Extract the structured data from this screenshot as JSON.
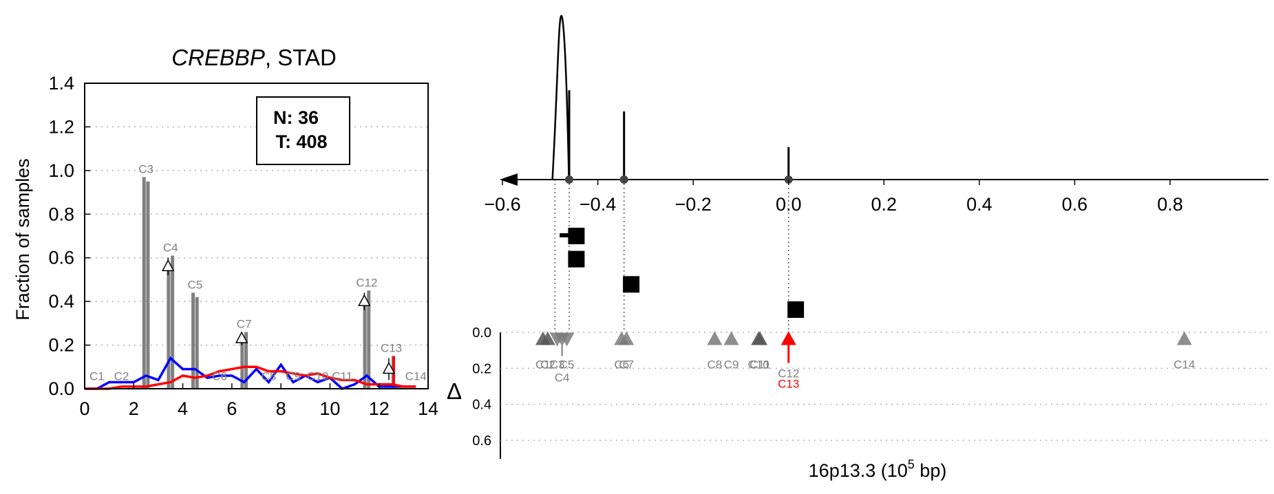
{
  "chart_data": [
    {
      "type": "bar",
      "title_gene": "CREBBP",
      "title_rest": ", STAD",
      "ylabel": "Fraction of samples",
      "xlim": [
        0,
        14
      ],
      "ylim": [
        0,
        1.4
      ],
      "xticks": [
        "0",
        "2",
        "4",
        "6",
        "8",
        "10",
        "12",
        "14"
      ],
      "yticks": [
        "0.0",
        "0.2",
        "0.4",
        "0.6",
        "0.8",
        "1.0",
        "1.2",
        "1.4"
      ],
      "legend_box": {
        "line1": "N: 36",
        "line2": "T: 408"
      },
      "grid": "horizontal dotted",
      "colors": {
        "bars": "#808080",
        "normal_line": "#0000ff",
        "tumor_line": "#ff0000",
        "highlight": "#ff0000"
      },
      "components": [
        {
          "label": "C1",
          "x": 0.5,
          "normal": 0.0,
          "tumor": 0.0
        },
        {
          "label": "C2",
          "x": 1.5,
          "normal": 0.0,
          "tumor": 0.0
        },
        {
          "label": "C3",
          "x": 2.5,
          "normal": 0.97,
          "tumor": 0.95
        },
        {
          "label": "C4",
          "x": 3.5,
          "normal": 0.56,
          "tumor": 0.61
        },
        {
          "label": "C5",
          "x": 4.5,
          "normal": 0.44,
          "tumor": 0.42
        },
        {
          "label": "C6",
          "x": 5.5,
          "normal": 0.0,
          "tumor": 0.0
        },
        {
          "label": "C7",
          "x": 6.5,
          "normal": 0.22,
          "tumor": 0.26
        },
        {
          "label": "C8",
          "x": 7.5,
          "normal": 0.0,
          "tumor": 0.0
        },
        {
          "label": "C9",
          "x": 8.5,
          "normal": 0.0,
          "tumor": 0.0
        },
        {
          "label": "C10",
          "x": 9.5,
          "normal": 0.0,
          "tumor": 0.0
        },
        {
          "label": "C11",
          "x": 10.5,
          "normal": 0.0,
          "tumor": 0.0
        },
        {
          "label": "C12",
          "x": 11.5,
          "normal": 0.38,
          "tumor": 0.45
        },
        {
          "label": "C13",
          "x": 12.5,
          "normal": 0.0,
          "tumor": 0.15
        },
        {
          "label": "C14",
          "x": 13.5,
          "normal": 0.0,
          "tumor": 0.0
        }
      ],
      "delta_markers": [
        {
          "x": 3.4,
          "y": 0.56,
          "err": 0.04
        },
        {
          "x": 6.4,
          "y": 0.23,
          "err": 0.03
        },
        {
          "x": 11.4,
          "y": 0.4,
          "err": 0.04
        },
        {
          "x": 12.4,
          "y": 0.09,
          "err": 0.05
        }
      ],
      "series": [
        {
          "color": "#0000ff",
          "x": [
            0,
            0.5,
            1,
            1.5,
            2,
            2.5,
            3,
            3.5,
            4,
            4.5,
            5,
            5.5,
            6,
            6.5,
            7,
            7.5,
            8,
            8.5,
            9,
            9.5,
            10,
            10.5,
            11,
            11.5,
            12,
            12.5,
            13,
            13.5
          ],
          "values": [
            0.0,
            0.0,
            0.03,
            0.03,
            0.03,
            0.06,
            0.04,
            0.14,
            0.09,
            0.09,
            0.05,
            0.06,
            0.06,
            0.03,
            0.09,
            0.03,
            0.11,
            0.03,
            0.06,
            0.03,
            0.05,
            0.0,
            0.02,
            0.06,
            0.01,
            0.01,
            0.01,
            0.01
          ]
        },
        {
          "color": "#ff0000",
          "x": [
            0,
            0.5,
            1,
            1.5,
            2,
            2.5,
            3,
            3.5,
            4,
            4.5,
            5,
            5.5,
            6,
            6.5,
            7,
            7.5,
            8,
            8.5,
            9,
            9.5,
            10,
            10.5,
            11,
            11.5,
            12,
            12.5,
            13,
            13.5
          ],
          "values": [
            0.0,
            0.0,
            0.0,
            0.01,
            0.01,
            0.01,
            0.02,
            0.03,
            0.06,
            0.05,
            0.06,
            0.08,
            0.09,
            0.1,
            0.1,
            0.08,
            0.08,
            0.07,
            0.06,
            0.07,
            0.05,
            0.04,
            0.04,
            0.02,
            0.02,
            0.02,
            0.01,
            0.01
          ]
        }
      ]
    },
    {
      "type": "scatter",
      "xlabel": "16p13.3 (10",
      "xlabel_sup": "5",
      "xlabel_end": " bp)",
      "ylabel": "Δ",
      "xlim": [
        -0.62,
        0.9
      ],
      "xticks": [
        "−0.6",
        "−0.4",
        "−0.2",
        "0.0",
        "0.2",
        "0.4",
        "0.6",
        "0.8"
      ],
      "yticks": [
        "0.0",
        "0.2",
        "0.4",
        "0.6"
      ],
      "ylim": [
        0,
        0.7
      ],
      "gene_track": {
        "direction": "reverse",
        "peaks": [
          {
            "x": -0.475,
            "height": 1.0,
            "shape": "broad"
          },
          {
            "x": -0.46,
            "height": 0.55,
            "shape": "spike"
          },
          {
            "x": -0.345,
            "height": 0.42,
            "shape": "spike"
          },
          {
            "x": 0.0,
            "height": 0.2,
            "shape": "spike"
          }
        ],
        "dots": [
          -0.46,
          -0.345,
          0.0
        ]
      },
      "squares": [
        {
          "x": -0.445,
          "y": 0.71
        },
        {
          "x": -0.445,
          "y": 0.6
        },
        {
          "x": -0.33,
          "y": 0.48
        },
        {
          "x": 0.015,
          "y": 0.36
        }
      ],
      "square_tick": {
        "x1": -0.48,
        "x2": -0.45,
        "y": 0.72
      },
      "vlines": [
        -0.49,
        -0.46,
        -0.345,
        0.0
      ],
      "triangles": [
        {
          "label": "C1",
          "x": -0.515,
          "dir": "up",
          "tone": "dark"
        },
        {
          "label": "C2",
          "x": -0.505,
          "dir": "up",
          "tone": "dark"
        },
        {
          "label": "C3",
          "x": -0.485,
          "dir": "down",
          "tone": "mid"
        },
        {
          "label": "C4",
          "x": -0.475,
          "dir": "down",
          "tone": "mid"
        },
        {
          "label": "C5",
          "x": -0.465,
          "dir": "down",
          "tone": "mid"
        },
        {
          "label": "C6",
          "x": -0.35,
          "dir": "up",
          "tone": "mid"
        },
        {
          "label": "C7",
          "x": -0.34,
          "dir": "up",
          "tone": "mid"
        },
        {
          "label": "C8",
          "x": -0.155,
          "dir": "up",
          "tone": "mid"
        },
        {
          "label": "C9",
          "x": -0.12,
          "dir": "up",
          "tone": "mid"
        },
        {
          "label": "C10",
          "x": -0.063,
          "dir": "up",
          "tone": "dark"
        },
        {
          "label": "C11",
          "x": -0.06,
          "dir": "up",
          "tone": "dark"
        },
        {
          "label": "C12",
          "x": 0.0,
          "dir": "up",
          "tone": "mid"
        },
        {
          "label": "C13",
          "x": 0.0,
          "dir": "up",
          "tone": "red"
        },
        {
          "label": "C14",
          "x": 0.83,
          "dir": "up",
          "tone": "mid"
        }
      ],
      "triangle_y": 0.04,
      "colors": {
        "dark": "#555555",
        "mid": "#7a7a7a",
        "red": "#ff0000"
      }
    }
  ]
}
